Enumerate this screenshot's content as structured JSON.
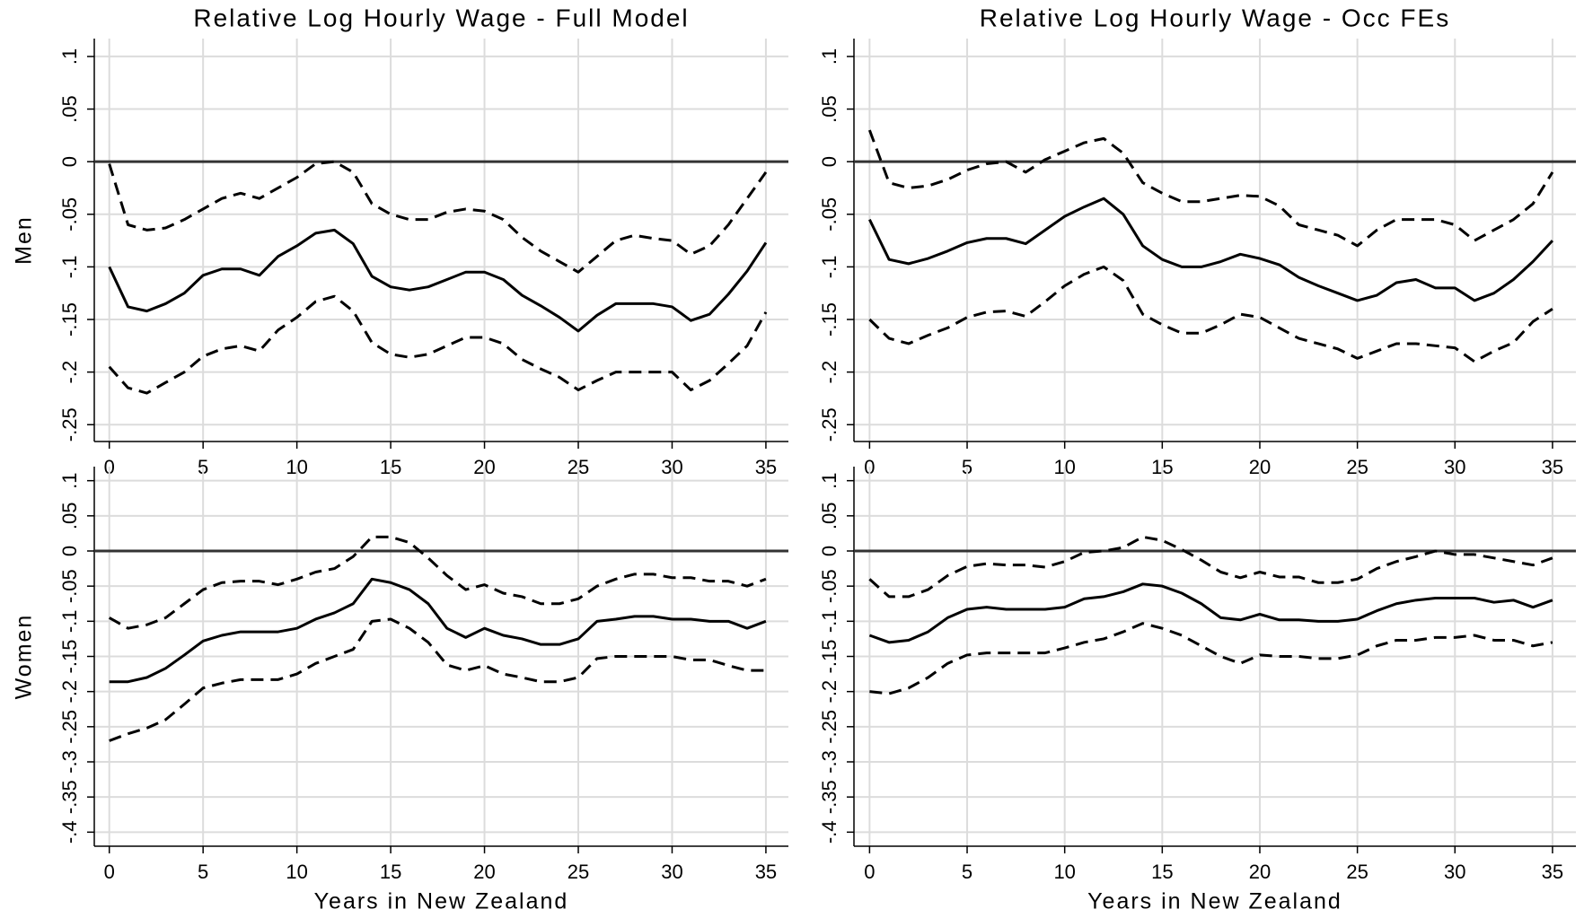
{
  "chart_data": [
    {
      "type": "line",
      "title": "Relative Log Hourly Wage - Full Model",
      "ylabel": "Men",
      "x": [
        0,
        1,
        2,
        3,
        4,
        5,
        6,
        7,
        8,
        9,
        10,
        11,
        12,
        13,
        14,
        15,
        16,
        17,
        18,
        19,
        20,
        21,
        22,
        23,
        24,
        25,
        26,
        27,
        28,
        29,
        30,
        31,
        32,
        33,
        34,
        35
      ],
      "xlim": [
        -0.8,
        36.2
      ],
      "xticks": [
        0,
        5,
        10,
        15,
        20,
        25,
        30,
        35
      ],
      "ylim": [
        -0.266,
        0.117
      ],
      "yticks": [
        {
          "value": 0.1,
          "label": ".1"
        },
        {
          "value": 0.05,
          "label": ".05"
        },
        0,
        {
          "value": -0.05,
          "label": "-.05"
        },
        {
          "value": -0.1,
          "label": "-.1"
        },
        {
          "value": -0.15,
          "label": "-.15"
        },
        {
          "value": -0.2,
          "label": "-.2"
        },
        {
          "value": -0.25,
          "label": "-.25"
        }
      ],
      "grid": true,
      "hline": 0,
      "series": [
        {
          "color": "#000000",
          "dashed": false,
          "values": [
            -0.1,
            -0.138,
            -0.142,
            -0.135,
            -0.125,
            -0.108,
            -0.102,
            -0.102,
            -0.108,
            -0.09,
            -0.08,
            -0.068,
            -0.065,
            -0.078,
            -0.109,
            -0.119,
            -0.122,
            -0.119,
            -0.112,
            -0.105,
            -0.105,
            -0.112,
            -0.127,
            -0.137,
            -0.148,
            -0.161,
            -0.146,
            -0.135,
            -0.135,
            -0.135,
            -0.138,
            -0.151,
            -0.145,
            -0.126,
            -0.104,
            -0.077
          ]
        },
        {
          "color": "#000000",
          "dashed": true,
          "values": [
            -0.002,
            -0.06,
            -0.065,
            -0.063,
            -0.055,
            -0.045,
            -0.035,
            -0.03,
            -0.035,
            -0.025,
            -0.015,
            -0.002,
            0.0,
            -0.01,
            -0.04,
            -0.05,
            -0.055,
            -0.055,
            -0.048,
            -0.045,
            -0.047,
            -0.055,
            -0.072,
            -0.085,
            -0.095,
            -0.105,
            -0.09,
            -0.075,
            -0.07,
            -0.073,
            -0.075,
            -0.088,
            -0.08,
            -0.06,
            -0.035,
            -0.01
          ]
        },
        {
          "color": "#000000",
          "dashed": true,
          "values": [
            -0.195,
            -0.215,
            -0.22,
            -0.21,
            -0.2,
            -0.185,
            -0.178,
            -0.175,
            -0.18,
            -0.16,
            -0.148,
            -0.133,
            -0.128,
            -0.142,
            -0.172,
            -0.183,
            -0.186,
            -0.183,
            -0.175,
            -0.167,
            -0.167,
            -0.173,
            -0.188,
            -0.197,
            -0.205,
            -0.217,
            -0.208,
            -0.2,
            -0.2,
            -0.2,
            -0.2,
            -0.217,
            -0.208,
            -0.192,
            -0.175,
            -0.143
          ]
        }
      ]
    },
    {
      "type": "line",
      "title": "Relative Log Hourly Wage - Occ FEs",
      "x": [
        0,
        1,
        2,
        3,
        4,
        5,
        6,
        7,
        8,
        9,
        10,
        11,
        12,
        13,
        14,
        15,
        16,
        17,
        18,
        19,
        20,
        21,
        22,
        23,
        24,
        25,
        26,
        27,
        28,
        29,
        30,
        31,
        32,
        33,
        34,
        35
      ],
      "xlim": [
        -0.8,
        36.2
      ],
      "xticks": [
        0,
        5,
        10,
        15,
        20,
        25,
        30,
        35
      ],
      "ylim": [
        -0.266,
        0.117
      ],
      "yticks": [
        {
          "value": 0.1,
          "label": ".1"
        },
        {
          "value": 0.05,
          "label": ".05"
        },
        0,
        {
          "value": -0.05,
          "label": "-.05"
        },
        {
          "value": -0.1,
          "label": "-.1"
        },
        {
          "value": -0.15,
          "label": "-.15"
        },
        {
          "value": -0.2,
          "label": "-.2"
        },
        {
          "value": -0.25,
          "label": "-.25"
        }
      ],
      "grid": true,
      "hline": 0,
      "series": [
        {
          "color": "#000000",
          "dashed": false,
          "values": [
            -0.055,
            -0.093,
            -0.097,
            -0.092,
            -0.085,
            -0.077,
            -0.073,
            -0.073,
            -0.078,
            -0.065,
            -0.052,
            -0.043,
            -0.035,
            -0.05,
            -0.08,
            -0.093,
            -0.1,
            -0.1,
            -0.095,
            -0.088,
            -0.092,
            -0.098,
            -0.11,
            -0.118,
            -0.125,
            -0.132,
            -0.127,
            -0.115,
            -0.112,
            -0.12,
            -0.12,
            -0.132,
            -0.125,
            -0.112,
            -0.095,
            -0.075
          ]
        },
        {
          "color": "#000000",
          "dashed": true,
          "values": [
            0.03,
            -0.02,
            -0.025,
            -0.023,
            -0.017,
            -0.008,
            -0.002,
            0.0,
            -0.01,
            0.002,
            0.01,
            0.018,
            0.022,
            0.008,
            -0.02,
            -0.03,
            -0.038,
            -0.038,
            -0.035,
            -0.032,
            -0.033,
            -0.042,
            -0.06,
            -0.065,
            -0.07,
            -0.08,
            -0.065,
            -0.055,
            -0.055,
            -0.055,
            -0.06,
            -0.075,
            -0.065,
            -0.055,
            -0.04,
            -0.01
          ]
        },
        {
          "color": "#000000",
          "dashed": true,
          "values": [
            -0.15,
            -0.168,
            -0.173,
            -0.165,
            -0.158,
            -0.148,
            -0.143,
            -0.142,
            -0.147,
            -0.133,
            -0.118,
            -0.107,
            -0.1,
            -0.113,
            -0.145,
            -0.155,
            -0.163,
            -0.163,
            -0.155,
            -0.145,
            -0.148,
            -0.158,
            -0.168,
            -0.173,
            -0.178,
            -0.187,
            -0.18,
            -0.173,
            -0.173,
            -0.175,
            -0.177,
            -0.19,
            -0.18,
            -0.172,
            -0.152,
            -0.14
          ]
        }
      ]
    },
    {
      "type": "line",
      "ylabel": "Women",
      "xlabel": "Years in New Zealand",
      "x": [
        0,
        1,
        2,
        3,
        4,
        5,
        6,
        7,
        8,
        9,
        10,
        11,
        12,
        13,
        14,
        15,
        16,
        17,
        18,
        19,
        20,
        21,
        22,
        23,
        24,
        25,
        26,
        27,
        28,
        29,
        30,
        31,
        32,
        33,
        34,
        35
      ],
      "xlim": [
        -0.8,
        36.2
      ],
      "xticks": [
        0,
        5,
        10,
        15,
        20,
        25,
        30,
        35
      ],
      "ylim": [
        -0.42,
        0.12
      ],
      "yticks": [
        {
          "value": 0.1,
          "label": ".1"
        },
        {
          "value": 0.05,
          "label": ".05"
        },
        0,
        {
          "value": -0.05,
          "label": "-.05"
        },
        {
          "value": -0.1,
          "label": "-.1"
        },
        {
          "value": -0.15,
          "label": "-.15"
        },
        {
          "value": -0.2,
          "label": "-.2"
        },
        {
          "value": -0.25,
          "label": "-.25"
        },
        {
          "value": -0.3,
          "label": "-.3"
        },
        {
          "value": -0.35,
          "label": "-.35"
        },
        {
          "value": -0.4,
          "label": "-.4"
        }
      ],
      "grid": true,
      "hline": 0,
      "series": [
        {
          "color": "#000000",
          "dashed": false,
          "values": [
            -0.186,
            -0.186,
            -0.18,
            -0.167,
            -0.148,
            -0.128,
            -0.12,
            -0.115,
            -0.115,
            -0.115,
            -0.11,
            -0.097,
            -0.088,
            -0.075,
            -0.04,
            -0.045,
            -0.055,
            -0.075,
            -0.11,
            -0.123,
            -0.11,
            -0.12,
            -0.125,
            -0.133,
            -0.133,
            -0.125,
            -0.1,
            -0.097,
            -0.093,
            -0.093,
            -0.097,
            -0.097,
            -0.1,
            -0.1,
            -0.11,
            -0.1
          ]
        },
        {
          "color": "#000000",
          "dashed": true,
          "values": [
            -0.095,
            -0.11,
            -0.105,
            -0.095,
            -0.075,
            -0.055,
            -0.045,
            -0.043,
            -0.043,
            -0.048,
            -0.04,
            -0.03,
            -0.025,
            -0.008,
            0.02,
            0.02,
            0.012,
            -0.01,
            -0.035,
            -0.055,
            -0.048,
            -0.06,
            -0.065,
            -0.075,
            -0.075,
            -0.068,
            -0.05,
            -0.04,
            -0.033,
            -0.033,
            -0.038,
            -0.038,
            -0.043,
            -0.043,
            -0.05,
            -0.04
          ]
        },
        {
          "color": "#000000",
          "dashed": true,
          "values": [
            -0.27,
            -0.26,
            -0.252,
            -0.24,
            -0.218,
            -0.195,
            -0.188,
            -0.183,
            -0.183,
            -0.183,
            -0.175,
            -0.16,
            -0.15,
            -0.14,
            -0.1,
            -0.097,
            -0.11,
            -0.13,
            -0.162,
            -0.17,
            -0.163,
            -0.175,
            -0.18,
            -0.186,
            -0.186,
            -0.18,
            -0.153,
            -0.15,
            -0.15,
            -0.15,
            -0.15,
            -0.155,
            -0.155,
            -0.163,
            -0.17,
            -0.17
          ]
        }
      ]
    },
    {
      "type": "line",
      "xlabel": "Years in New Zealand",
      "x": [
        0,
        1,
        2,
        3,
        4,
        5,
        6,
        7,
        8,
        9,
        10,
        11,
        12,
        13,
        14,
        15,
        16,
        17,
        18,
        19,
        20,
        21,
        22,
        23,
        24,
        25,
        26,
        27,
        28,
        29,
        30,
        31,
        32,
        33,
        34,
        35
      ],
      "xlim": [
        -0.8,
        36.2
      ],
      "xticks": [
        0,
        5,
        10,
        15,
        20,
        25,
        30,
        35
      ],
      "ylim": [
        -0.42,
        0.12
      ],
      "yticks": [
        {
          "value": 0.1,
          "label": ".1"
        },
        {
          "value": 0.05,
          "label": ".05"
        },
        0,
        {
          "value": -0.05,
          "label": "-.05"
        },
        {
          "value": -0.1,
          "label": "-.1"
        },
        {
          "value": -0.15,
          "label": "-.15"
        },
        {
          "value": -0.2,
          "label": "-.2"
        },
        {
          "value": -0.25,
          "label": "-.25"
        },
        {
          "value": -0.3,
          "label": "-.3"
        },
        {
          "value": -0.35,
          "label": "-.35"
        },
        {
          "value": -0.4,
          "label": "-.4"
        }
      ],
      "grid": true,
      "hline": 0,
      "series": [
        {
          "color": "#000000",
          "dashed": false,
          "values": [
            -0.12,
            -0.13,
            -0.127,
            -0.115,
            -0.095,
            -0.083,
            -0.08,
            -0.083,
            -0.083,
            -0.083,
            -0.08,
            -0.068,
            -0.065,
            -0.058,
            -0.047,
            -0.05,
            -0.06,
            -0.075,
            -0.095,
            -0.098,
            -0.09,
            -0.098,
            -0.098,
            -0.1,
            -0.1,
            -0.097,
            -0.085,
            -0.075,
            -0.07,
            -0.067,
            -0.067,
            -0.067,
            -0.073,
            -0.07,
            -0.08,
            -0.07
          ]
        },
        {
          "color": "#000000",
          "dashed": true,
          "values": [
            -0.04,
            -0.065,
            -0.065,
            -0.055,
            -0.035,
            -0.022,
            -0.018,
            -0.02,
            -0.02,
            -0.023,
            -0.015,
            -0.002,
            0.0,
            0.005,
            0.02,
            0.015,
            0.002,
            -0.013,
            -0.03,
            -0.038,
            -0.03,
            -0.037,
            -0.037,
            -0.045,
            -0.045,
            -0.04,
            -0.025,
            -0.015,
            -0.008,
            0.0,
            -0.005,
            -0.005,
            -0.01,
            -0.015,
            -0.02,
            -0.01
          ]
        },
        {
          "color": "#000000",
          "dashed": true,
          "values": [
            -0.2,
            -0.203,
            -0.195,
            -0.18,
            -0.16,
            -0.148,
            -0.145,
            -0.145,
            -0.145,
            -0.145,
            -0.138,
            -0.13,
            -0.125,
            -0.115,
            -0.103,
            -0.11,
            -0.12,
            -0.135,
            -0.15,
            -0.16,
            -0.148,
            -0.15,
            -0.15,
            -0.153,
            -0.153,
            -0.148,
            -0.135,
            -0.127,
            -0.127,
            -0.123,
            -0.123,
            -0.12,
            -0.127,
            -0.127,
            -0.135,
            -0.13
          ]
        }
      ]
    }
  ]
}
